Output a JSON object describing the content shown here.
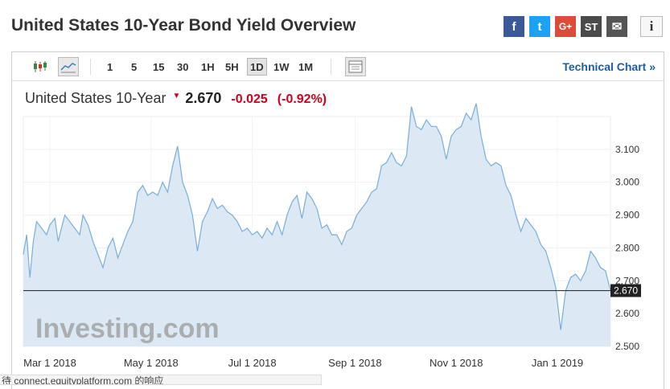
{
  "header": {
    "title": "United States 10-Year Bond Yield Overview",
    "share": {
      "facebook": "f",
      "twitter": "t",
      "google": "G+",
      "stocktwits": "ST",
      "email": "✉",
      "info": "i"
    }
  },
  "toolbar": {
    "timeframes": [
      "1",
      "5",
      "15",
      "30",
      "1H",
      "5H",
      "1D",
      "1W",
      "1M"
    ],
    "active_timeframe": "1D",
    "technical_chart_label": "Technical Chart »"
  },
  "quote": {
    "name": "United States 10-Year",
    "price": "2.670",
    "change": "-0.025",
    "change_pct": "(-0.92%)",
    "direction": "down"
  },
  "chart_data": {
    "type": "area",
    "x_tick_labels": [
      "Mar 1 2018",
      "May 1 2018",
      "Jul 1 2018",
      "Sep 1 2018",
      "Nov 1 2018",
      "Jan 1 2019"
    ],
    "y_tick_labels": [
      "3.100",
      "3.000",
      "2.900",
      "2.800",
      "2.700",
      "2.600",
      "2.500"
    ],
    "ylim": [
      2.5,
      3.2
    ],
    "current_value_label": "2.670",
    "current_value": 2.67,
    "watermark": "Investing.com",
    "colors": {
      "line": "#7aaed8",
      "fill": "#dce9f4",
      "current_line": "#333333",
      "current_label_bg": "#222222"
    },
    "series": [
      {
        "x": [
          "2018-02-13",
          "2018-02-15",
          "2018-02-17",
          "2018-02-19",
          "2018-02-21",
          "2018-02-24",
          "2018-02-27",
          "2018-03-01",
          "2018-03-04",
          "2018-03-06",
          "2018-03-08",
          "2018-03-10",
          "2018-03-13",
          "2018-03-16",
          "2018-03-19",
          "2018-03-21",
          "2018-03-24",
          "2018-03-27",
          "2018-03-30",
          "2018-04-02",
          "2018-04-05",
          "2018-04-08",
          "2018-04-11",
          "2018-04-14",
          "2018-04-17",
          "2018-04-20",
          "2018-04-23",
          "2018-04-26",
          "2018-04-29",
          "2018-05-02",
          "2018-05-05",
          "2018-05-08",
          "2018-05-11",
          "2018-05-14",
          "2018-05-17",
          "2018-05-20",
          "2018-05-23",
          "2018-05-26",
          "2018-05-29",
          "2018-06-01",
          "2018-06-04",
          "2018-06-07",
          "2018-06-10",
          "2018-06-13",
          "2018-06-16",
          "2018-06-19",
          "2018-06-22",
          "2018-06-25",
          "2018-06-28",
          "2018-07-01",
          "2018-07-04",
          "2018-07-07",
          "2018-07-10",
          "2018-07-13",
          "2018-07-16",
          "2018-07-19",
          "2018-07-22",
          "2018-07-25",
          "2018-07-28",
          "2018-07-31",
          "2018-08-03",
          "2018-08-06",
          "2018-08-09",
          "2018-08-12",
          "2018-08-15",
          "2018-08-18",
          "2018-08-21",
          "2018-08-24",
          "2018-08-27",
          "2018-08-30",
          "2018-09-02",
          "2018-09-05",
          "2018-09-08",
          "2018-09-11",
          "2018-09-14",
          "2018-09-17",
          "2018-09-20",
          "2018-09-23",
          "2018-09-26",
          "2018-09-29",
          "2018-10-02",
          "2018-10-05",
          "2018-10-08",
          "2018-10-11",
          "2018-10-14",
          "2018-10-17",
          "2018-10-20",
          "2018-10-23",
          "2018-10-26",
          "2018-10-29",
          "2018-11-01",
          "2018-11-04",
          "2018-11-07",
          "2018-11-10",
          "2018-11-13",
          "2018-11-16",
          "2018-11-19",
          "2018-11-22",
          "2018-11-25",
          "2018-11-28",
          "2018-12-01",
          "2018-12-04",
          "2018-12-07",
          "2018-12-10",
          "2018-12-13",
          "2018-12-16",
          "2018-12-19",
          "2018-12-22",
          "2018-12-25",
          "2018-12-28",
          "2018-12-31",
          "2019-01-03",
          "2019-01-06",
          "2019-01-09",
          "2019-01-12",
          "2019-01-15",
          "2019-01-18",
          "2019-01-21",
          "2019-01-24",
          "2019-01-27",
          "2019-01-30",
          "2019-02-02"
        ],
        "values": [
          2.78,
          2.84,
          2.71,
          2.82,
          2.88,
          2.86,
          2.84,
          2.87,
          2.89,
          2.82,
          2.86,
          2.9,
          2.88,
          2.86,
          2.84,
          2.9,
          2.87,
          2.82,
          2.78,
          2.74,
          2.8,
          2.83,
          2.77,
          2.81,
          2.85,
          2.88,
          2.97,
          2.99,
          2.96,
          2.97,
          2.96,
          3.0,
          2.97,
          3.05,
          3.11,
          3.0,
          2.96,
          2.9,
          2.79,
          2.88,
          2.91,
          2.95,
          2.92,
          2.93,
          2.91,
          2.9,
          2.88,
          2.85,
          2.86,
          2.84,
          2.85,
          2.83,
          2.86,
          2.84,
          2.88,
          2.84,
          2.9,
          2.94,
          2.96,
          2.89,
          2.97,
          2.95,
          2.92,
          2.86,
          2.87,
          2.84,
          2.84,
          2.81,
          2.85,
          2.86,
          2.9,
          2.92,
          2.94,
          2.97,
          2.98,
          3.05,
          3.06,
          3.09,
          3.06,
          3.05,
          3.08,
          3.23,
          3.17,
          3.16,
          3.19,
          3.17,
          3.17,
          3.14,
          3.07,
          3.14,
          3.16,
          3.17,
          3.21,
          3.19,
          3.24,
          3.14,
          3.07,
          3.05,
          3.06,
          3.05,
          2.99,
          2.96,
          2.9,
          2.85,
          2.89,
          2.87,
          2.85,
          2.81,
          2.79,
          2.74,
          2.68,
          2.55,
          2.67,
          2.71,
          2.72,
          2.7,
          2.73,
          2.79,
          2.77,
          2.74,
          2.73,
          2.67
        ]
      }
    ]
  },
  "status_bar": {
    "text": "待 connect.equityplatform.com 的响应"
  }
}
